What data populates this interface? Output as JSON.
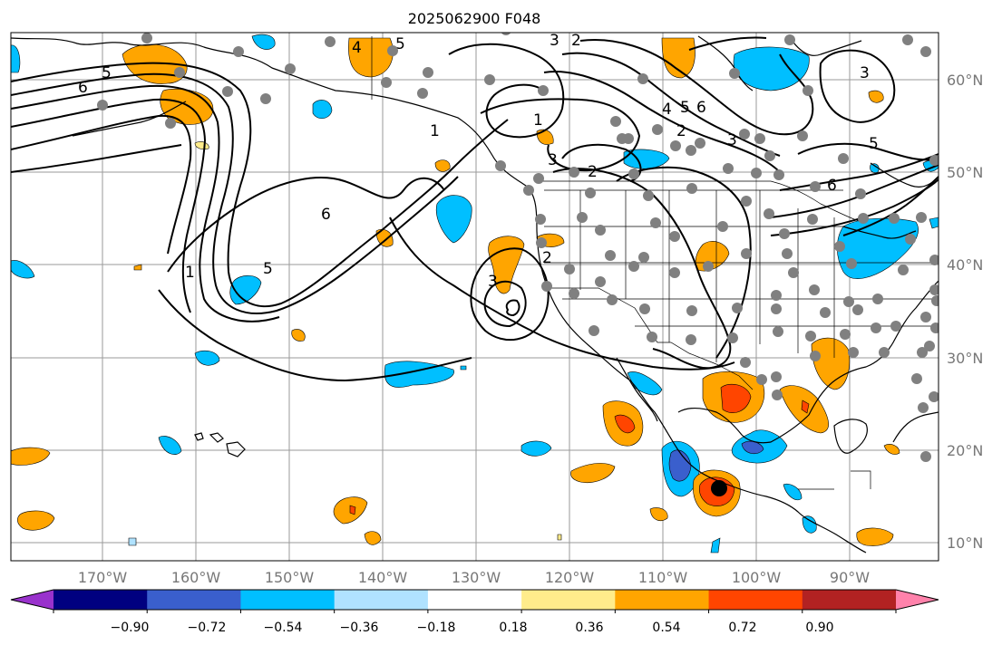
{
  "title": "2025062900 F048",
  "longitude_labels": [
    "170°W",
    "160°W",
    "150°W",
    "140°W",
    "130°W",
    "120°W",
    "110°W",
    "100°W",
    "90°W"
  ],
  "latitude_labels": [
    "60°N",
    "50°N",
    "40°N",
    "30°N",
    "20°N",
    "10°N"
  ],
  "colorbar": {
    "tick_labels": [
      "−0.90",
      "−0.72",
      "−0.54",
      "−0.36",
      "−0.18",
      "0.18",
      "0.36",
      "0.54",
      "0.72",
      "0.90"
    ],
    "colors": [
      "#9932cc",
      "#000080",
      "#3a5fcd",
      "#00bfff",
      "#b0e2ff",
      "#ffffff",
      "#ffec8b",
      "#ffa500",
      "#ff4500",
      "#b22222",
      "#ff82ab"
    ]
  },
  "contour_labels": [
    "6",
    "5",
    "4",
    "5",
    "3",
    "2",
    "1",
    "3",
    "2",
    "3",
    "4",
    "5",
    "6",
    "3",
    "6",
    "1",
    "5",
    "2",
    "3",
    "5",
    "6",
    "2",
    "1"
  ],
  "map_layers": [
    "coastlines",
    "country-borders",
    "us-state-borders",
    "lat-lon-gridlines",
    "contours",
    "shaded-field",
    "station-dots",
    "storm-marker"
  ]
}
